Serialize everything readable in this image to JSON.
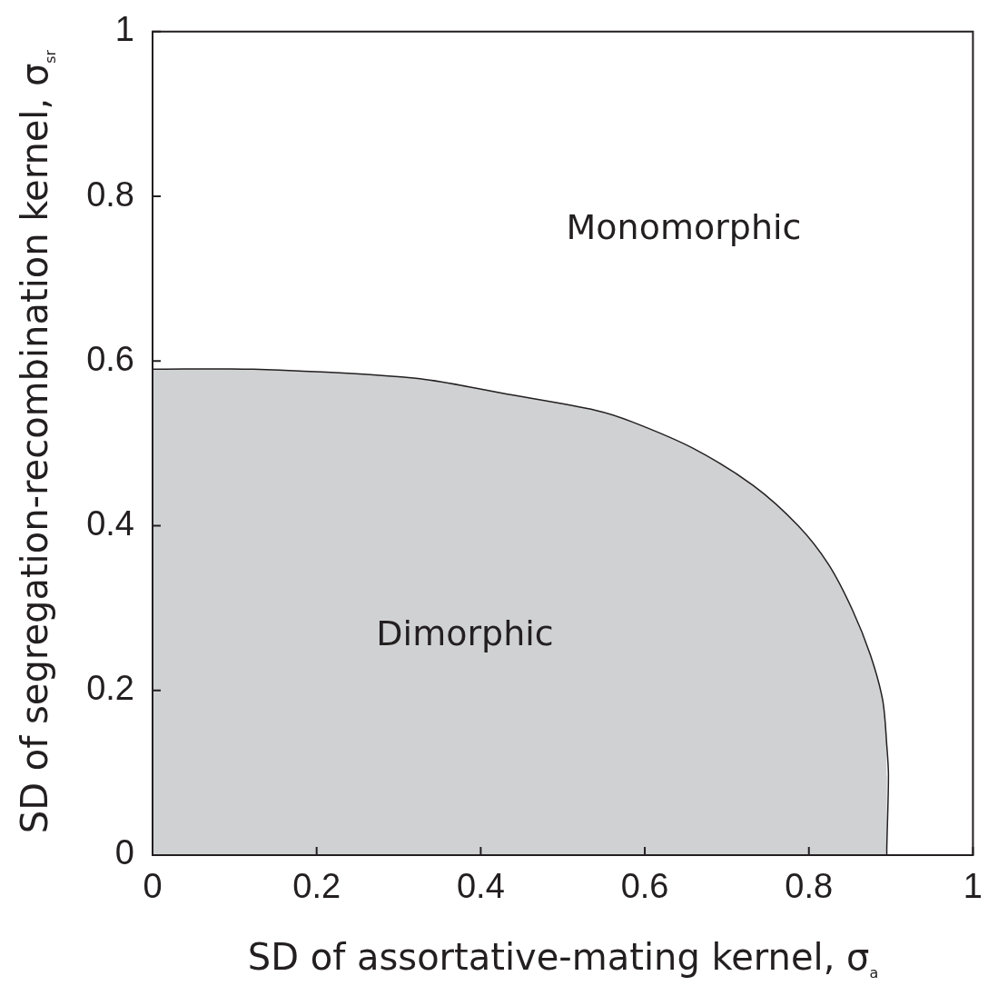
{
  "chart_data": {
    "type": "area",
    "xlabel": "SD of assortative-mating kernel, σ$_{a}$",
    "ylabel": "SD of segregation-recombination kernel, σ$_{sr}$",
    "x": [
      0,
      0.123,
      0.321,
      0.431,
      0.541,
      0.585,
      0.659,
      0.732,
      0.787,
      0.824,
      0.853,
      0.875,
      0.89,
      0.895,
      0.897,
      0.895,
      0.895
    ],
    "values": [
      0.59,
      0.59,
      0.579,
      0.56,
      0.54,
      0.526,
      0.494,
      0.449,
      0.4,
      0.353,
      0.298,
      0.243,
      0.188,
      0.133,
      0.097,
      0.009,
      0
    ],
    "color": "#d0d1d3",
    "xlim": [
      0,
      1
    ],
    "ylim": [
      0,
      1
    ],
    "xticks": [
      0,
      0.2,
      0.4,
      0.6,
      0.8,
      1
    ],
    "yticks": [
      0,
      0.2,
      0.4,
      0.6,
      0.8,
      1
    ],
    "grid": false,
    "annotations": [
      "Monomorphic",
      "Dimorphic"
    ]
  }
}
